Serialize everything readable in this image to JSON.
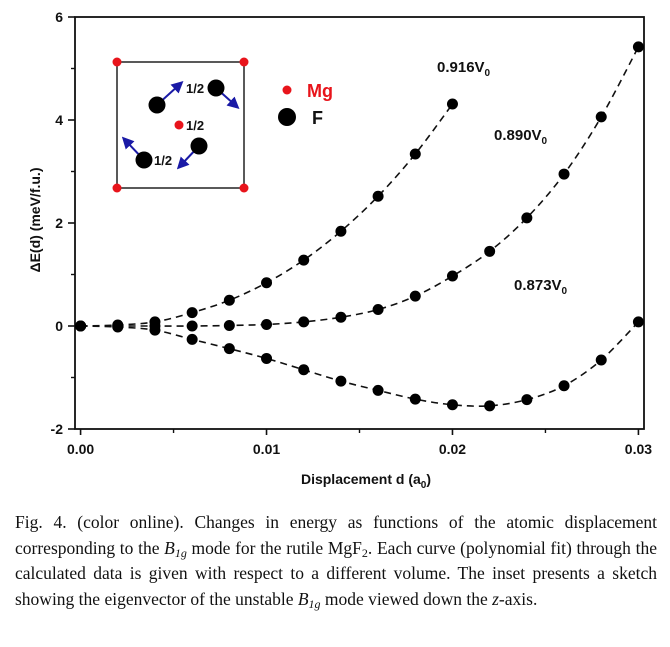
{
  "chart_data": {
    "type": "line",
    "xlabel": "Displacement d (a",
    "xlabel_sub": "0",
    "xlabel_end": ")",
    "ylabel": "ΔE(d) (meV/f.u.)",
    "xlim": [
      -0.0003,
      0.0303
    ],
    "ylim": [
      -2,
      6
    ],
    "x_ticks": [
      "0.00",
      "0.01",
      "0.02",
      "0.03"
    ],
    "x_tick_values": [
      0.0,
      0.01,
      0.02,
      0.03
    ],
    "x_minor_tick_values": [
      0.005,
      0.015,
      0.025
    ],
    "y_ticks": [
      "-2",
      "0",
      "2",
      "4",
      "6"
    ],
    "y_tick_values": [
      -2,
      0,
      2,
      4,
      6
    ],
    "y_minor_tick_values": [
      -1,
      1,
      3,
      5
    ],
    "grid": false,
    "series": [
      {
        "name": "0.916V",
        "name_sub": "0",
        "x": [
          0.0,
          0.002,
          0.004,
          0.006,
          0.008,
          0.01,
          0.012,
          0.014,
          0.016,
          0.018,
          0.02
        ],
        "values": [
          0.0,
          0.02,
          0.08,
          0.26,
          0.5,
          0.84,
          1.28,
          1.84,
          2.52,
          3.34,
          4.31
        ]
      },
      {
        "name": "0.890V",
        "name_sub": "0",
        "x": [
          0.0,
          0.002,
          0.004,
          0.006,
          0.008,
          0.01,
          0.012,
          0.014,
          0.016,
          0.018,
          0.02,
          0.022,
          0.024,
          0.026,
          0.028,
          0.03
        ],
        "values": [
          0.0,
          0.0,
          0.0,
          0.0,
          0.01,
          0.03,
          0.08,
          0.17,
          0.32,
          0.58,
          0.97,
          1.45,
          2.1,
          2.95,
          4.06,
          5.42
        ]
      },
      {
        "name": "0.873V",
        "name_sub": "0",
        "x": [
          0.0,
          0.002,
          0.004,
          0.006,
          0.008,
          0.01,
          0.012,
          0.014,
          0.016,
          0.018,
          0.02,
          0.022,
          0.024,
          0.026,
          0.028,
          0.03
        ],
        "values": [
          0.0,
          -0.02,
          -0.08,
          -0.26,
          -0.44,
          -0.63,
          -0.85,
          -1.07,
          -1.25,
          -1.42,
          -1.53,
          -1.55,
          -1.43,
          -1.16,
          -0.66,
          0.08
        ]
      }
    ],
    "inset": {
      "legend": [
        {
          "label": "Mg",
          "color": "#e8141b"
        },
        {
          "label": "F",
          "color": "#000000"
        }
      ],
      "height_labels": [
        "1/2",
        "1/2",
        "1/2"
      ],
      "arrow_color": "#1a1aa6",
      "box_color": "#222222"
    }
  },
  "caption": {
    "part1": "Fig. 4. (color online). Changes in energy as functions of the atomic displacement corresponding to the ",
    "mode_letter": "B",
    "mode_sub": "1g",
    "part2": " mode for the rutile MgF",
    "formula_sub": "2",
    "part3": ". Each curve (polynomial fit) through the calculated data is given with respect to a different volume. The inset presents a sketch showing the eigenvector of the unstable ",
    "mode_letter2": "B",
    "mode_sub2": "1g",
    "part4": " mode viewed down the ",
    "axis_letter": "z",
    "part5": "-axis."
  }
}
